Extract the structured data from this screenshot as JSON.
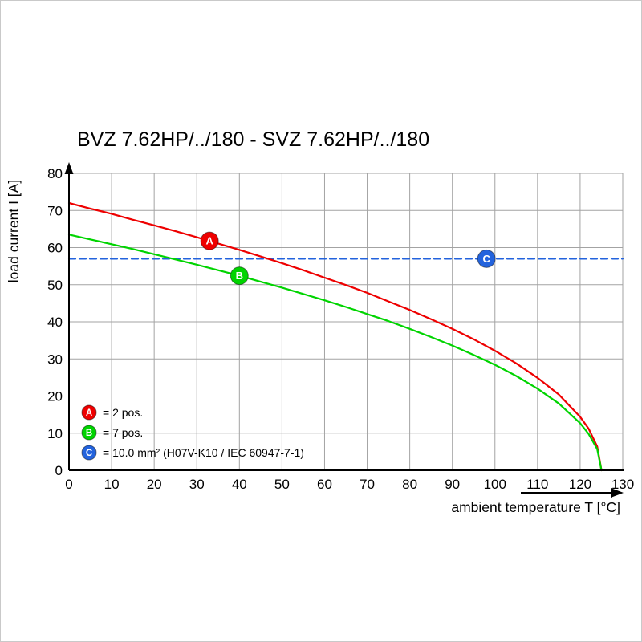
{
  "title": "BVZ 7.62HP/../180 - SVZ 7.62HP/../180",
  "chart_data": {
    "type": "line",
    "title": "BVZ 7.62HP/../180 - SVZ 7.62HP/../180",
    "xlabel": "ambient temperature T [°C]",
    "ylabel": "load current I [A]",
    "xlim": [
      0,
      130
    ],
    "ylim": [
      0,
      80
    ],
    "x_ticks": [
      0,
      10,
      20,
      30,
      40,
      50,
      60,
      70,
      80,
      90,
      100,
      110,
      120,
      130
    ],
    "y_ticks": [
      0,
      10,
      20,
      30,
      40,
      50,
      60,
      70,
      80
    ],
    "grid": true,
    "legend_position": "inside-bottom-left",
    "series": [
      {
        "name": "A",
        "label": "= 2 pos.",
        "color": "#ee0000",
        "style": "solid",
        "points": [
          [
            0,
            72
          ],
          [
            5,
            70.5
          ],
          [
            10,
            69.1
          ],
          [
            15,
            67.5
          ],
          [
            20,
            66
          ],
          [
            25,
            64.4
          ],
          [
            30,
            62.8
          ],
          [
            35,
            61.1
          ],
          [
            40,
            59.4
          ],
          [
            45,
            57.6
          ],
          [
            50,
            55.8
          ],
          [
            55,
            53.9
          ],
          [
            60,
            51.9
          ],
          [
            65,
            49.9
          ],
          [
            70,
            47.8
          ],
          [
            75,
            45.5
          ],
          [
            80,
            43.2
          ],
          [
            85,
            40.7
          ],
          [
            90,
            38.1
          ],
          [
            95,
            35.3
          ],
          [
            100,
            32.2
          ],
          [
            105,
            28.8
          ],
          [
            110,
            24.9
          ],
          [
            115,
            20.4
          ],
          [
            120,
            14.4
          ],
          [
            122,
            11.2
          ],
          [
            124,
            6.4
          ],
          [
            125,
            0
          ]
        ]
      },
      {
        "name": "B",
        "label": "= 7 pos.",
        "color": "#00d400",
        "style": "solid",
        "points": [
          [
            0,
            63.5
          ],
          [
            5,
            62.2
          ],
          [
            10,
            60.9
          ],
          [
            15,
            59.6
          ],
          [
            20,
            58.2
          ],
          [
            25,
            56.8
          ],
          [
            30,
            55.4
          ],
          [
            35,
            53.9
          ],
          [
            40,
            52.4
          ],
          [
            45,
            50.8
          ],
          [
            50,
            49.2
          ],
          [
            55,
            47.5
          ],
          [
            60,
            45.8
          ],
          [
            65,
            44
          ],
          [
            70,
            42.1
          ],
          [
            75,
            40.2
          ],
          [
            80,
            38.1
          ],
          [
            85,
            35.9
          ],
          [
            90,
            33.6
          ],
          [
            95,
            31.1
          ],
          [
            100,
            28.4
          ],
          [
            105,
            25.4
          ],
          [
            110,
            22
          ],
          [
            115,
            18
          ],
          [
            120,
            12.7
          ],
          [
            122,
            9.8
          ],
          [
            124,
            5.7
          ],
          [
            125,
            0
          ]
        ]
      },
      {
        "name": "C",
        "label": "= 10.0 mm² (H07V-K10 / IEC 60947-7-1)",
        "color": "#2363dd",
        "style": "dashed",
        "points": [
          [
            0,
            57
          ],
          [
            130,
            57
          ]
        ]
      }
    ],
    "markers": [
      {
        "id": "A",
        "x": 33,
        "y": 61.8,
        "color": "#ee0000"
      },
      {
        "id": "B",
        "x": 40,
        "y": 52.4,
        "color": "#00d400"
      },
      {
        "id": "C",
        "x": 98,
        "y": 57,
        "color": "#2363dd"
      }
    ]
  }
}
